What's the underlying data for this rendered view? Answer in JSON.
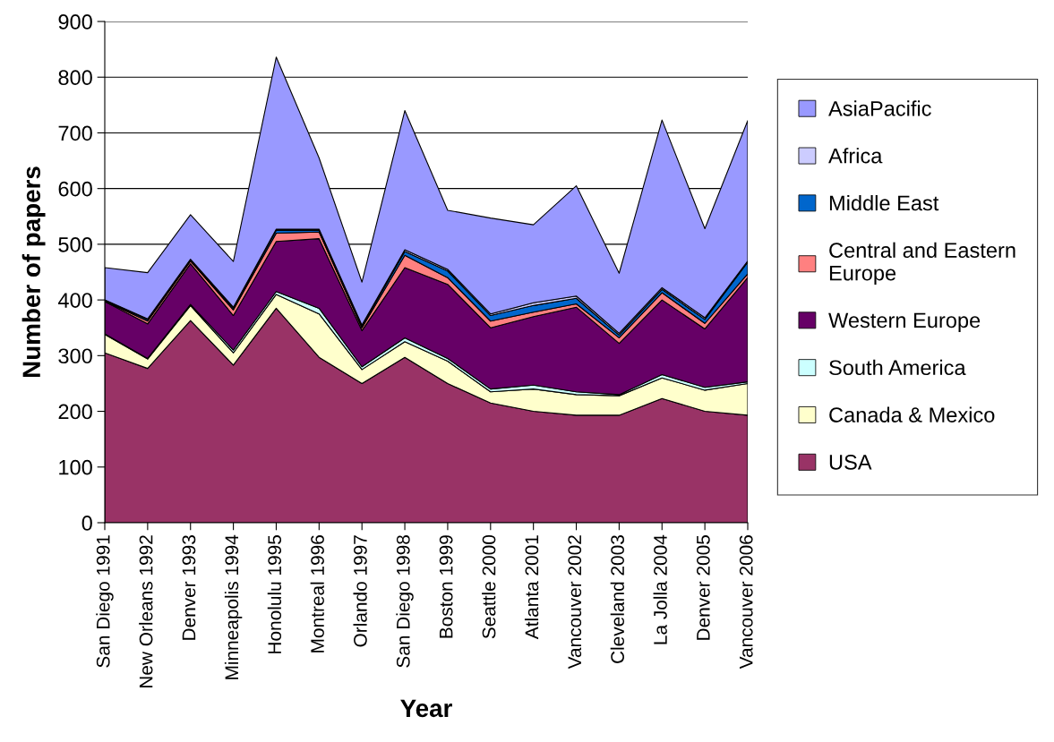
{
  "chart_data": {
    "type": "area",
    "stacked": true,
    "xlabel": "Year",
    "ylabel": "Number of papers",
    "categories": [
      "San Diego 1991",
      "New Orleans 1992",
      "Denver 1993",
      "Minneapolis 1994",
      "Honolulu 1995",
      "Montreal 1996",
      "Orlando 1997",
      "San Diego 1998",
      "Boston 1999",
      "Seattle 2000",
      "Atlanta 2001",
      "Vancouver 2002",
      "Cleveland 2003",
      "La Jolla 2004",
      "Denver 2005",
      "Vancouver 2006"
    ],
    "series": [
      {
        "name": "USA",
        "color": "#993366",
        "values": [
          305,
          277,
          363,
          283,
          385,
          297,
          250,
          297,
          250,
          215,
          200,
          193,
          193,
          223,
          200,
          193
        ]
      },
      {
        "name": "Canada & Mexico",
        "color": "#ffffcc",
        "values": [
          33,
          17,
          27,
          22,
          25,
          78,
          25,
          28,
          40,
          20,
          40,
          37,
          35,
          37,
          38,
          57
        ]
      },
      {
        "name": "South America",
        "color": "#ccffff",
        "values": [
          1,
          1,
          2,
          5,
          5,
          10,
          5,
          7,
          5,
          5,
          7,
          5,
          2,
          6,
          5,
          3
        ]
      },
      {
        "name": "Western Europe",
        "color": "#660066",
        "values": [
          58,
          62,
          73,
          62,
          90,
          125,
          65,
          126,
          133,
          110,
          123,
          152,
          92,
          134,
          105,
          187
        ]
      },
      {
        "name": "Central and Eastern Europe",
        "color": "#ff8080",
        "values": [
          1,
          5,
          5,
          10,
          15,
          12,
          5,
          22,
          12,
          12,
          8,
          6,
          10,
          13,
          10,
          7
        ]
      },
      {
        "name": "Middle East",
        "color": "#0066cc",
        "values": [
          1,
          3,
          2,
          3,
          5,
          3,
          3,
          7,
          12,
          10,
          12,
          10,
          5,
          6,
          7,
          21
        ]
      },
      {
        "name": "Africa",
        "color": "#ccccff",
        "values": [
          1,
          1,
          1,
          2,
          2,
          2,
          2,
          3,
          3,
          3,
          5,
          4,
          3,
          3,
          3,
          2
        ]
      },
      {
        "name": "AsiaPacific",
        "color": "#9999ff",
        "values": [
          58,
          83,
          80,
          82,
          309,
          128,
          77,
          250,
          106,
          172,
          140,
          198,
          108,
          301,
          160,
          252
        ]
      }
    ],
    "ylim": [
      0,
      900
    ],
    "yticks": [
      0,
      100,
      200,
      300,
      400,
      500,
      600,
      700,
      800,
      900
    ],
    "grid": "y",
    "legend": "right"
  }
}
